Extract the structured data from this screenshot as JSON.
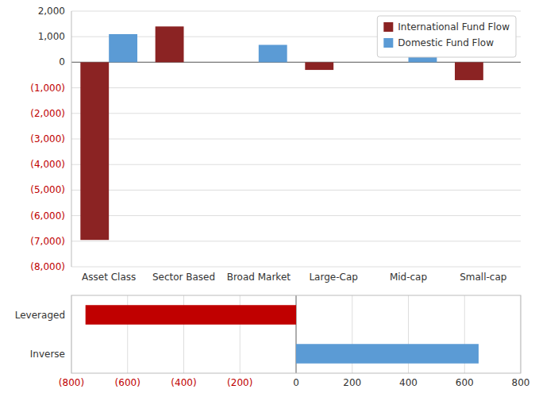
{
  "chart_data": [
    {
      "type": "bar",
      "categories": [
        "Asset Class",
        "Sector Based",
        "Broad Market",
        "Large-Cap",
        "Mid-cap",
        "Small-cap"
      ],
      "series": [
        {
          "name": "International Fund Flow",
          "color": "#8B2323",
          "values": [
            -6950,
            1400,
            0,
            -300,
            0,
            -700
          ]
        },
        {
          "name": "Domestic Fund Flow",
          "color": "#5B9BD5",
          "values": [
            1100,
            0,
            680,
            0,
            200,
            0
          ]
        }
      ],
      "ylim": [
        -8000,
        2000
      ],
      "yticks": [
        {
          "value": -8000,
          "label": "(8,000)"
        },
        {
          "value": -7000,
          "label": "(7,000)"
        },
        {
          "value": -6000,
          "label": "(6,000)"
        },
        {
          "value": -5000,
          "label": "(5,000)"
        },
        {
          "value": -4000,
          "label": "(4,000)"
        },
        {
          "value": -3000,
          "label": "(3,000)"
        },
        {
          "value": -2000,
          "label": "(2,000)"
        },
        {
          "value": -1000,
          "label": "(1,000)"
        },
        0,
        {
          "value": 1000,
          "label": "1,000"
        },
        {
          "value": 2000,
          "label": "2,000"
        }
      ],
      "grid": true,
      "legend": "upper right"
    },
    {
      "type": "bar",
      "orientation": "horizontal",
      "categories": [
        "Leveraged",
        "Inverse"
      ],
      "values": [
        -750,
        650
      ],
      "colors": [
        "#C00000",
        "#5B9BD5"
      ],
      "xlim": [
        -800,
        800
      ],
      "xticks": [
        {
          "value": -800,
          "label": "(800)"
        },
        {
          "value": -600,
          "label": "(600)"
        },
        {
          "value": -400,
          "label": "(400)"
        },
        {
          "value": -200,
          "label": "(200)"
        },
        0,
        200,
        400,
        600,
        800
      ],
      "grid": true
    }
  ]
}
